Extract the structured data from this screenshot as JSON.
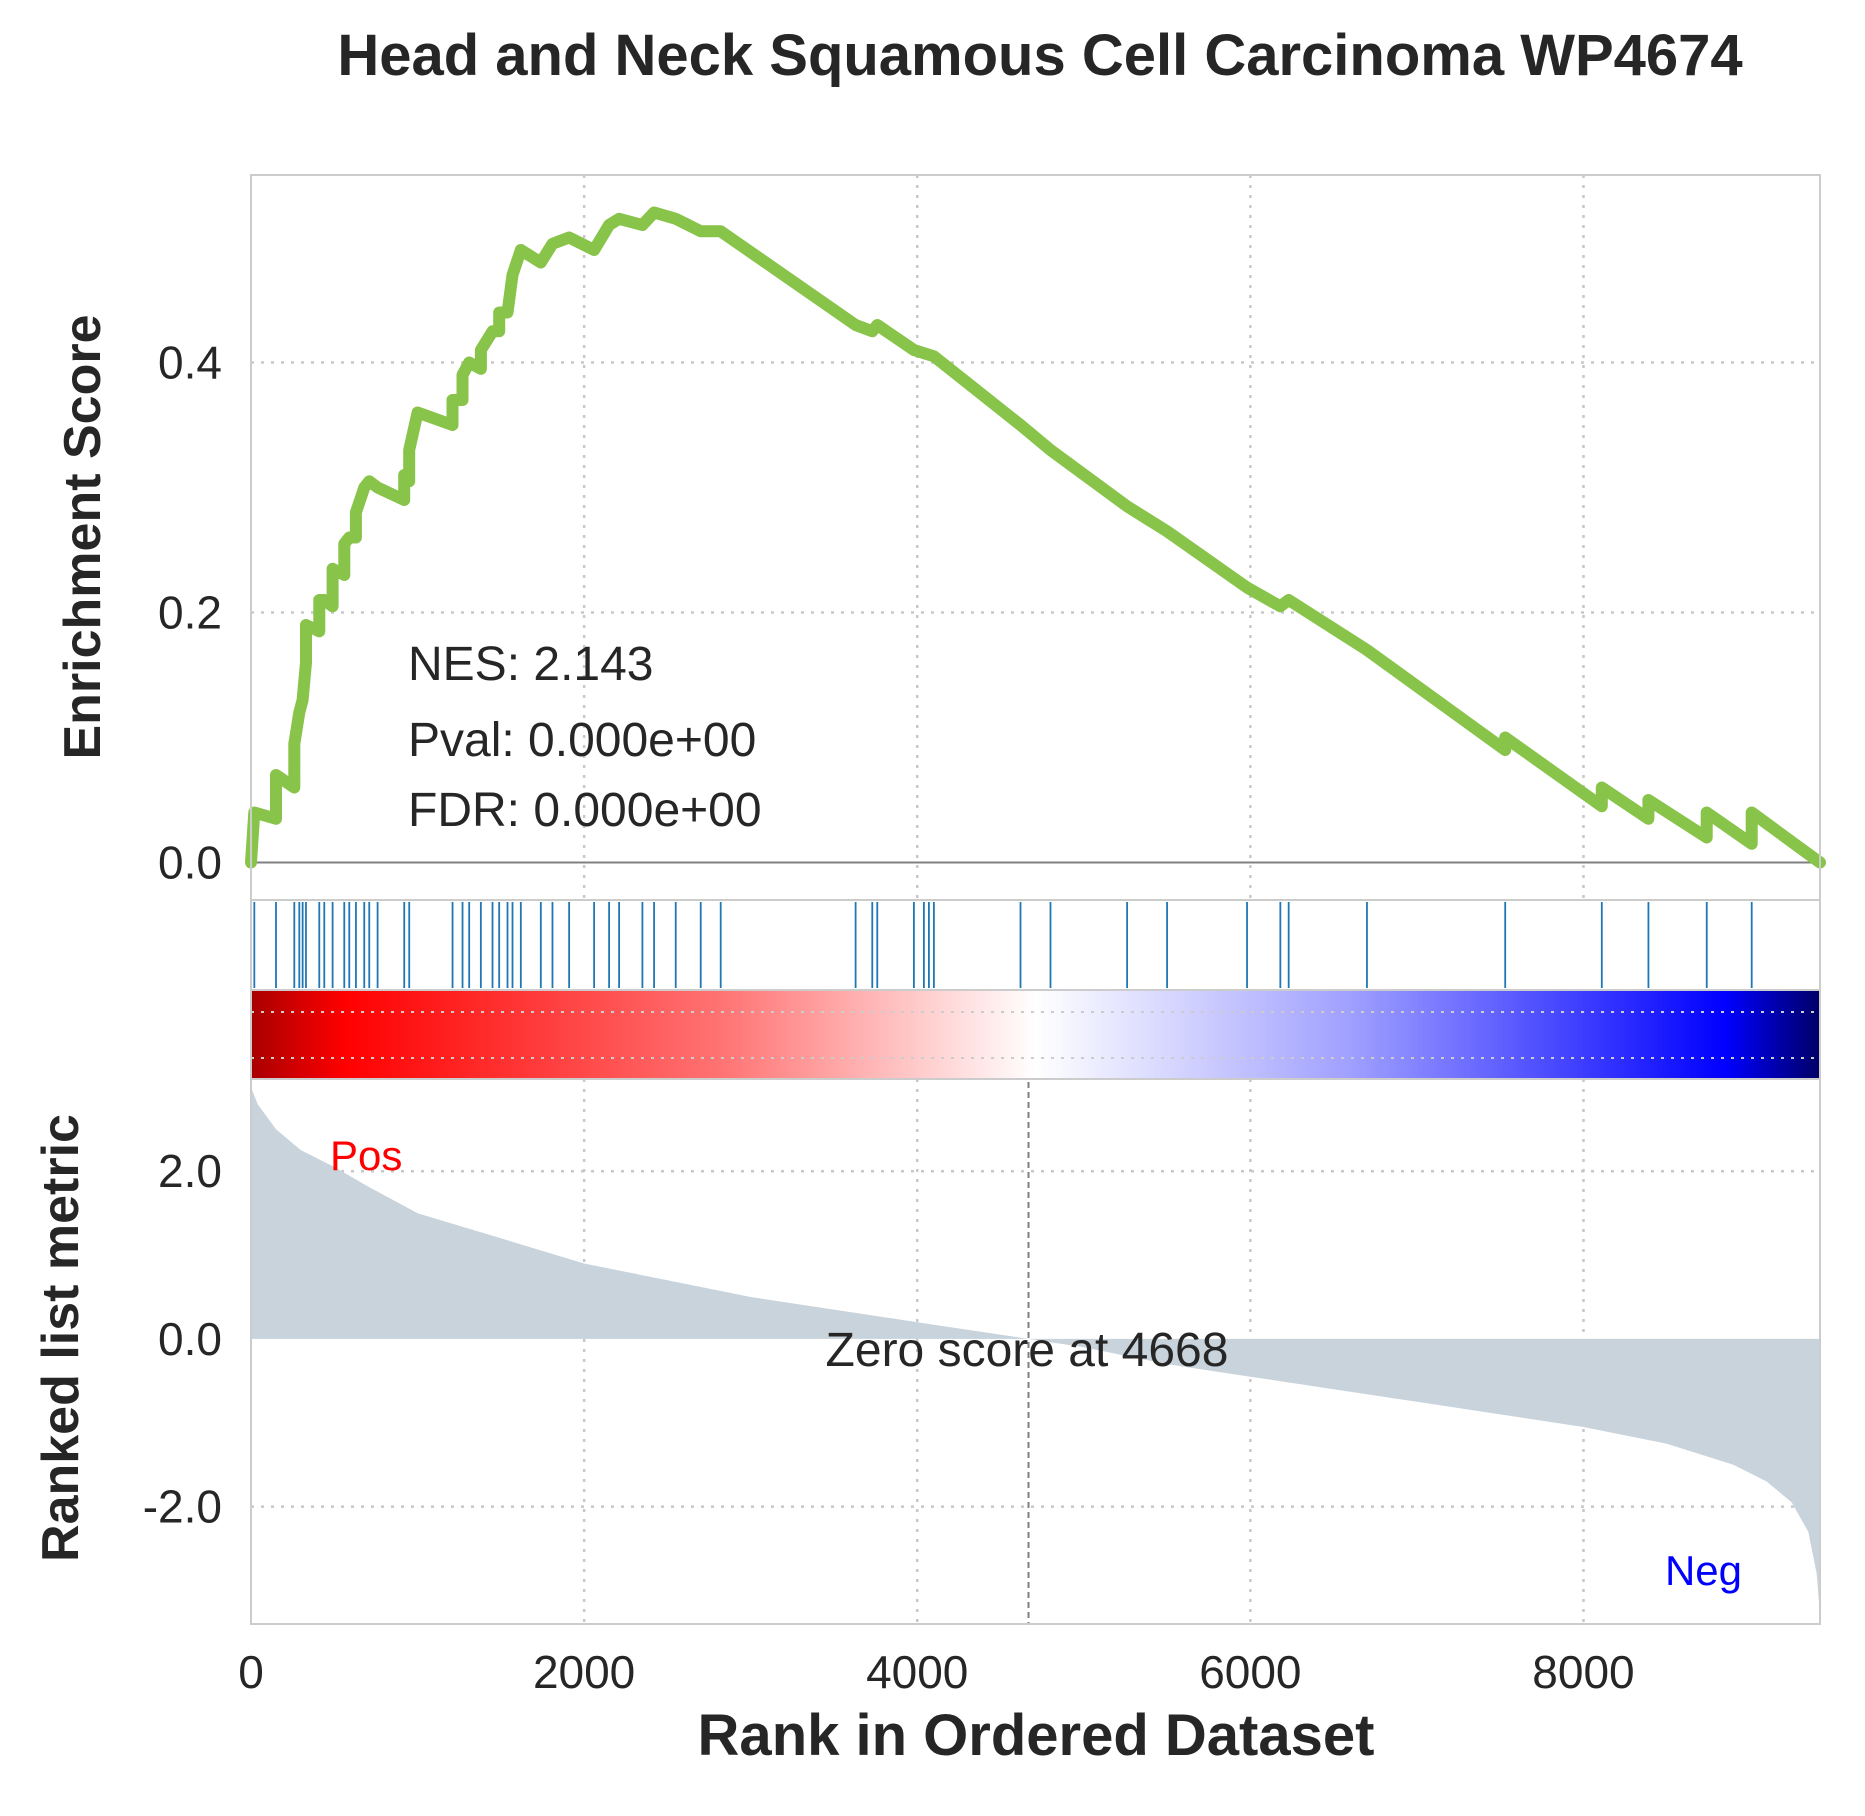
{
  "chart_data": {
    "type": "line",
    "title": "Head and Neck Squamous Cell Carcinoma WP4674",
    "xlabel": "Rank in Ordered Dataset",
    "ylabel_top": "Enrichment Score",
    "ylabel_bottom": "Ranked list metric",
    "xlim": [
      0,
      9420
    ],
    "x_ticks": [
      0,
      2000,
      4000,
      6000,
      8000
    ],
    "es_ylim": [
      -0.03,
      0.55
    ],
    "es_ticks": [
      "0.0",
      "0.2",
      "0.4"
    ],
    "rank_ylim": [
      -3.4,
      3.1
    ],
    "rank_ticks": [
      "2.0",
      "0.0",
      "-2.0"
    ],
    "grid": true,
    "stats": {
      "nes": "NES: 2.143",
      "pval": "Pval: 0.000e+00",
      "fdr": "FDR: 0.000e+00"
    },
    "pos_label": "Pos",
    "neg_label": "Neg",
    "zero_score_label": "Zero score at 4668",
    "zero_score_rank": 4668,
    "colors": {
      "es_line": "#88c34a",
      "hits": "#1f77b4",
      "metric_fill": "#c8d3dc",
      "pos": "#ff0000",
      "neg": "#0000ff"
    },
    "hit_ranks": [
      20,
      150,
      260,
      290,
      310,
      330,
      410,
      440,
      490,
      560,
      590,
      630,
      680,
      710,
      760,
      920,
      950,
      1210,
      1270,
      1310,
      1380,
      1450,
      1490,
      1540,
      1570,
      1620,
      1740,
      1810,
      1910,
      2060,
      2150,
      2210,
      2350,
      2420,
      2550,
      2700,
      2820,
      3630,
      3730,
      3760,
      3980,
      4040,
      4070,
      4100,
      4620,
      4800,
      5260,
      5500,
      5980,
      6180,
      6230,
      6700,
      7530,
      8110,
      8390,
      8740,
      9010
    ],
    "es_points": [
      [
        0,
        0.0
      ],
      [
        20,
        0.04
      ],
      [
        150,
        0.035
      ],
      [
        150,
        0.07
      ],
      [
        260,
        0.06
      ],
      [
        260,
        0.095
      ],
      [
        290,
        0.12
      ],
      [
        310,
        0.13
      ],
      [
        330,
        0.16
      ],
      [
        330,
        0.19
      ],
      [
        410,
        0.185
      ],
      [
        410,
        0.21
      ],
      [
        440,
        0.21
      ],
      [
        490,
        0.205
      ],
      [
        490,
        0.235
      ],
      [
        560,
        0.23
      ],
      [
        560,
        0.255
      ],
      [
        590,
        0.26
      ],
      [
        630,
        0.26
      ],
      [
        630,
        0.28
      ],
      [
        680,
        0.3
      ],
      [
        710,
        0.305
      ],
      [
        760,
        0.3
      ],
      [
        920,
        0.29
      ],
      [
        920,
        0.31
      ],
      [
        950,
        0.305
      ],
      [
        950,
        0.33
      ],
      [
        1000,
        0.36
      ],
      [
        1210,
        0.35
      ],
      [
        1210,
        0.37
      ],
      [
        1270,
        0.37
      ],
      [
        1270,
        0.39
      ],
      [
        1310,
        0.4
      ],
      [
        1380,
        0.395
      ],
      [
        1380,
        0.41
      ],
      [
        1450,
        0.425
      ],
      [
        1490,
        0.425
      ],
      [
        1490,
        0.44
      ],
      [
        1540,
        0.44
      ],
      [
        1570,
        0.47
      ],
      [
        1620,
        0.49
      ],
      [
        1740,
        0.48
      ],
      [
        1810,
        0.495
      ],
      [
        1910,
        0.5
      ],
      [
        2060,
        0.49
      ],
      [
        2150,
        0.51
      ],
      [
        2210,
        0.515
      ],
      [
        2350,
        0.51
      ],
      [
        2420,
        0.52
      ],
      [
        2550,
        0.515
      ],
      [
        2700,
        0.505
      ],
      [
        2820,
        0.505
      ],
      [
        3630,
        0.43
      ],
      [
        3730,
        0.425
      ],
      [
        3760,
        0.43
      ],
      [
        3980,
        0.41
      ],
      [
        4100,
        0.405
      ],
      [
        4620,
        0.35
      ],
      [
        4800,
        0.33
      ],
      [
        5260,
        0.285
      ],
      [
        5500,
        0.265
      ],
      [
        5980,
        0.22
      ],
      [
        6180,
        0.205
      ],
      [
        6230,
        0.21
      ],
      [
        6700,
        0.17
      ],
      [
        7530,
        0.09
      ],
      [
        7530,
        0.1
      ],
      [
        8110,
        0.045
      ],
      [
        8110,
        0.06
      ],
      [
        8390,
        0.035
      ],
      [
        8390,
        0.05
      ],
      [
        8740,
        0.02
      ],
      [
        8740,
        0.04
      ],
      [
        9010,
        0.015
      ],
      [
        9010,
        0.04
      ],
      [
        9420,
        0.0
      ]
    ],
    "metric_points": [
      [
        0,
        3.0
      ],
      [
        40,
        2.8
      ],
      [
        150,
        2.5
      ],
      [
        300,
        2.25
      ],
      [
        500,
        2.05
      ],
      [
        700,
        1.82
      ],
      [
        1000,
        1.5
      ],
      [
        1500,
        1.2
      ],
      [
        2000,
        0.9
      ],
      [
        2500,
        0.7
      ],
      [
        3000,
        0.5
      ],
      [
        3500,
        0.35
      ],
      [
        4000,
        0.2
      ],
      [
        4668,
        0.0
      ],
      [
        5000,
        -0.1
      ],
      [
        5500,
        -0.3
      ],
      [
        6000,
        -0.45
      ],
      [
        6500,
        -0.6
      ],
      [
        7000,
        -0.75
      ],
      [
        7500,
        -0.9
      ],
      [
        8000,
        -1.05
      ],
      [
        8500,
        -1.25
      ],
      [
        8900,
        -1.5
      ],
      [
        9100,
        -1.7
      ],
      [
        9250,
        -1.95
      ],
      [
        9350,
        -2.3
      ],
      [
        9400,
        -2.8
      ],
      [
        9420,
        -3.3
      ]
    ]
  }
}
